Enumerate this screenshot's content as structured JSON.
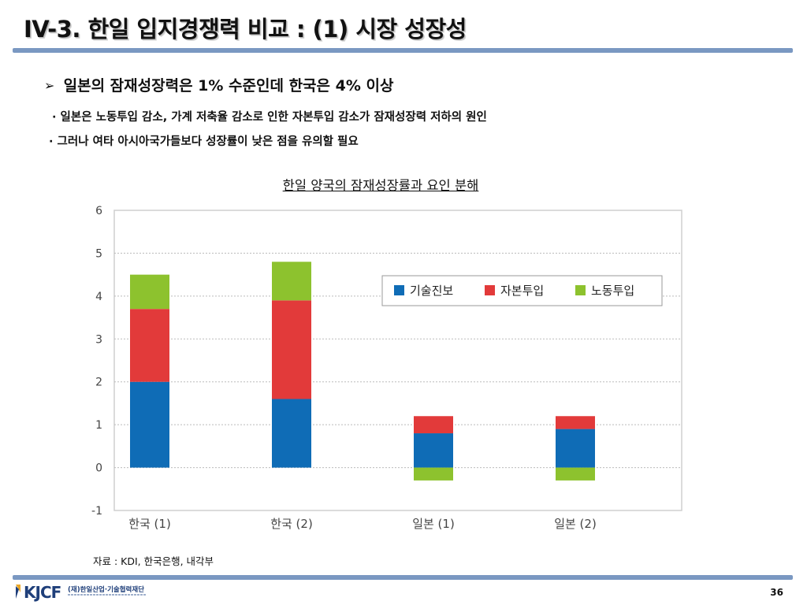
{
  "slide": {
    "title": "IV-3. 한일 입지경쟁력 비교 :  (1) 시장 성장성",
    "main_bullet": "일본의 잠재성장력은 1% 수준인데 한국은 4% 이상",
    "sub_bullets": [
      "· 일본은 노동투입 감소, 가계 저축율 감소로 인한 자본투입 감소가 잠재성장력 저하의 원인",
      "· 그러나 여타 아시아국가들보다 성장률이 낮은 점을 유의할 필요"
    ],
    "source": "자료 : KDI, 한국은행, 내각부",
    "page_number": "36",
    "logo": {
      "text": "KJCF",
      "org_name": "(재)한일산업·기술협력재단"
    }
  },
  "colors": {
    "tech": "#0f6cb6",
    "capital": "#e23a3a",
    "labor": "#8dc22e",
    "rule": "#7a98c2",
    "grid": "#bbbbbb"
  },
  "chart_data": {
    "type": "bar",
    "stacked": true,
    "title": "한일 양국의 잠재성장률과 요인 분해",
    "categories": [
      "한국 (1)",
      "한국 (2)",
      "일본 (1)",
      "일본 (2)"
    ],
    "series": [
      {
        "name": "기술진보",
        "values": [
          2.0,
          1.6,
          0.8,
          0.9
        ]
      },
      {
        "name": "자본투입",
        "values": [
          1.7,
          2.3,
          0.4,
          0.3
        ]
      },
      {
        "name": "노동투입",
        "values": [
          0.8,
          0.9,
          -0.3,
          -0.3
        ]
      }
    ],
    "ylim": [
      -1,
      6
    ],
    "yticks": [
      -1,
      0,
      1,
      2,
      3,
      4,
      5,
      6
    ],
    "grid": true,
    "legend_position": "top-right",
    "xlabel": "",
    "ylabel": ""
  }
}
